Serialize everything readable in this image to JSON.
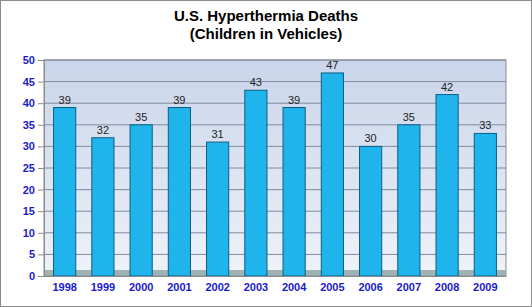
{
  "chart_data": {
    "type": "bar",
    "title": "U.S. Hyperthermia Deaths",
    "subtitle": "(Children in Vehicles)",
    "categories": [
      "1998",
      "1999",
      "2000",
      "2001",
      "2002",
      "2003",
      "2004",
      "2005",
      "2006",
      "2007",
      "2008",
      "2009"
    ],
    "values": [
      39,
      32,
      35,
      39,
      31,
      43,
      39,
      47,
      30,
      35,
      42,
      33
    ],
    "color": "#1fb4ec",
    "ylim": [
      0,
      50
    ],
    "yticks": [
      0,
      5,
      10,
      15,
      20,
      25,
      30,
      35,
      40,
      45,
      50
    ],
    "grid": true,
    "data_labels": true
  }
}
